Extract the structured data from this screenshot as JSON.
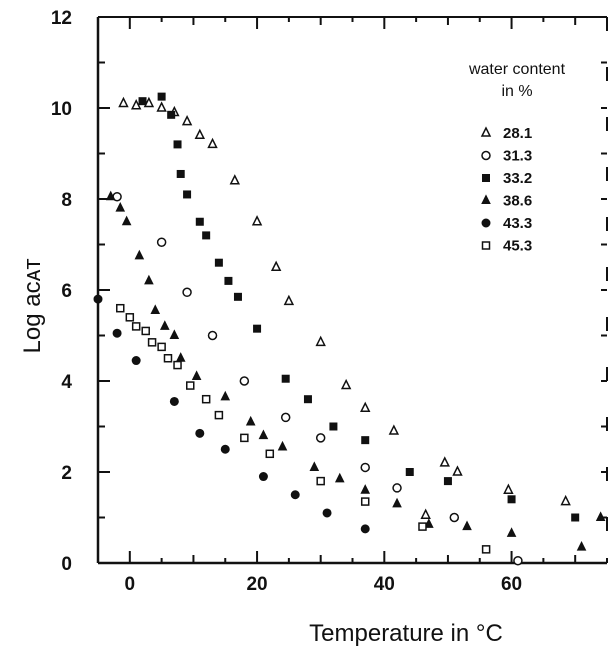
{
  "chart_data": {
    "type": "scatter",
    "xlabel": "Temperature in °C",
    "ylabel": "Log aᴄᴀᴛ",
    "xlim": [
      -5,
      75
    ],
    "ylim": [
      0,
      12
    ],
    "x_ticks": [
      0,
      20,
      40,
      60
    ],
    "y_ticks": [
      0,
      2,
      4,
      6,
      8,
      10,
      12
    ],
    "grid": false,
    "legend": {
      "title": "water content",
      "title_line2": "in %",
      "position": "top-right"
    },
    "series": [
      {
        "name": "28.1",
        "marker": "open-triangle",
        "points": [
          [
            -1,
            10.1
          ],
          [
            1,
            10.05
          ],
          [
            3,
            10.1
          ],
          [
            5,
            10.0
          ],
          [
            7,
            9.9
          ],
          [
            9,
            9.7
          ],
          [
            11,
            9.4
          ],
          [
            13,
            9.2
          ],
          [
            16.5,
            8.4
          ],
          [
            20,
            7.5
          ],
          [
            23,
            6.5
          ],
          [
            25,
            5.75
          ],
          [
            30,
            4.85
          ],
          [
            34,
            3.9
          ],
          [
            37,
            3.4
          ],
          [
            41.5,
            2.9
          ],
          [
            46.5,
            1.05
          ],
          [
            49.5,
            2.2
          ],
          [
            51.5,
            2.0
          ],
          [
            59.5,
            1.6
          ],
          [
            68.5,
            1.35
          ]
        ]
      },
      {
        "name": "31.3",
        "marker": "open-circle",
        "points": [
          [
            -2,
            8.05
          ],
          [
            5,
            7.05
          ],
          [
            9,
            5.95
          ],
          [
            13,
            5.0
          ],
          [
            18,
            4.0
          ],
          [
            24.5,
            3.2
          ],
          [
            30,
            2.75
          ],
          [
            37,
            2.1
          ],
          [
            42,
            1.65
          ],
          [
            51,
            1.0
          ],
          [
            61,
            0.05
          ]
        ]
      },
      {
        "name": "33.2",
        "marker": "filled-square",
        "points": [
          [
            2,
            10.15
          ],
          [
            5,
            10.25
          ],
          [
            6.5,
            9.85
          ],
          [
            7.5,
            9.2
          ],
          [
            8,
            8.55
          ],
          [
            9,
            8.1
          ],
          [
            11,
            7.5
          ],
          [
            12,
            7.2
          ],
          [
            14,
            6.6
          ],
          [
            15.5,
            6.2
          ],
          [
            17,
            5.85
          ],
          [
            20,
            5.15
          ],
          [
            24.5,
            4.05
          ],
          [
            28,
            3.6
          ],
          [
            32,
            3.0
          ],
          [
            37,
            2.7
          ],
          [
            44,
            2.0
          ],
          [
            50,
            1.8
          ],
          [
            60,
            1.4
          ],
          [
            70,
            1.0
          ]
        ]
      },
      {
        "name": "38.6",
        "marker": "filled-triangle",
        "points": [
          [
            -3,
            8.05
          ],
          [
            -1.5,
            7.8
          ],
          [
            -0.5,
            7.5
          ],
          [
            1.5,
            6.75
          ],
          [
            3,
            6.2
          ],
          [
            4,
            5.55
          ],
          [
            5.5,
            5.2
          ],
          [
            7,
            5.0
          ],
          [
            8,
            4.5
          ],
          [
            10.5,
            4.1
          ],
          [
            15,
            3.65
          ],
          [
            19,
            3.1
          ],
          [
            21,
            2.8
          ],
          [
            24,
            2.55
          ],
          [
            29,
            2.1
          ],
          [
            33,
            1.85
          ],
          [
            37,
            1.6
          ],
          [
            42,
            1.3
          ],
          [
            47,
            0.85
          ],
          [
            53,
            0.8
          ],
          [
            60,
            0.65
          ],
          [
            71,
            0.35
          ],
          [
            74,
            1.0
          ]
        ]
      },
      {
        "name": "43.3",
        "marker": "filled-circle",
        "points": [
          [
            -5,
            5.8
          ],
          [
            -2,
            5.05
          ],
          [
            1,
            4.45
          ],
          [
            7,
            3.55
          ],
          [
            11,
            2.85
          ],
          [
            15,
            2.5
          ],
          [
            21,
            1.9
          ],
          [
            26,
            1.5
          ],
          [
            31,
            1.1
          ],
          [
            37,
            0.75
          ]
        ]
      },
      {
        "name": "45.3",
        "marker": "open-square",
        "points": [
          [
            -1.5,
            5.6
          ],
          [
            0,
            5.4
          ],
          [
            1,
            5.2
          ],
          [
            2.5,
            5.1
          ],
          [
            3.5,
            4.85
          ],
          [
            5,
            4.75
          ],
          [
            6,
            4.5
          ],
          [
            7.5,
            4.35
          ],
          [
            9.5,
            3.9
          ],
          [
            12,
            3.6
          ],
          [
            14,
            3.25
          ],
          [
            18,
            2.75
          ],
          [
            22,
            2.4
          ],
          [
            30,
            1.8
          ],
          [
            37,
            1.35
          ],
          [
            46,
            0.8
          ],
          [
            56,
            0.3
          ]
        ]
      }
    ]
  }
}
